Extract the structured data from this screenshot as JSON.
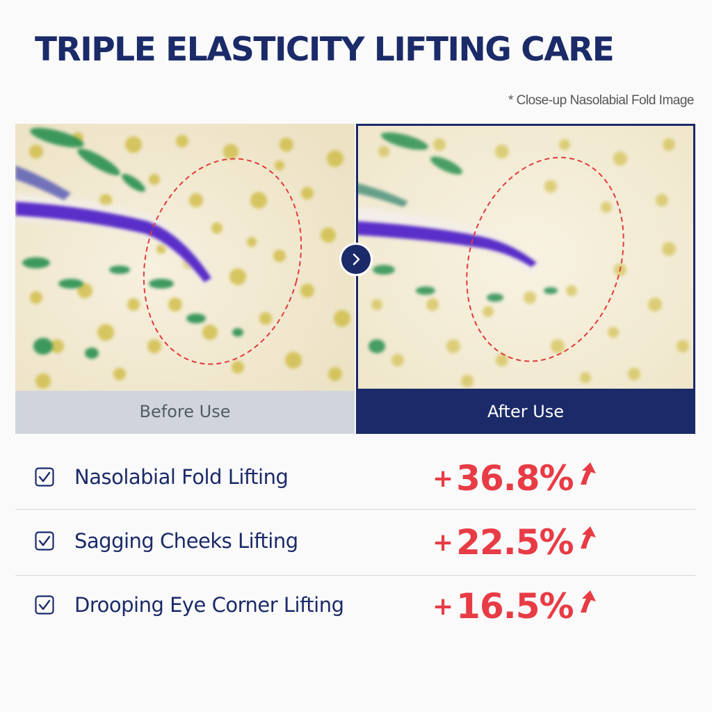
{
  "title": "TRIPLE ELASTICITY LIFTING CARE",
  "caption": "* Close-up Nasolabial Fold Image",
  "comparison": {
    "before_label": "Before Use",
    "after_label": "After Use",
    "arrow_icon": "chevron-right-icon"
  },
  "results": [
    {
      "label": "Nasolabial Fold Lifting",
      "sign": "+",
      "value": "36.8%",
      "icon": "arrow-up-icon"
    },
    {
      "label": "Sagging Cheeks Lifting",
      "sign": "+",
      "value": "22.5%",
      "icon": "arrow-up-icon"
    },
    {
      "label": "Drooping Eye Corner Lifting",
      "sign": "+",
      "value": "16.5%",
      "icon": "arrow-up-icon"
    }
  ],
  "colors": {
    "navy": "#1b2a68",
    "accent_red": "#e83c45",
    "before_bar": "#d0d5dd",
    "skin": "#f4ecd8",
    "pigment_yellow": "#c8b42e",
    "pigment_green": "#1f8a4a",
    "fold_purple": "#5a2fc8"
  }
}
